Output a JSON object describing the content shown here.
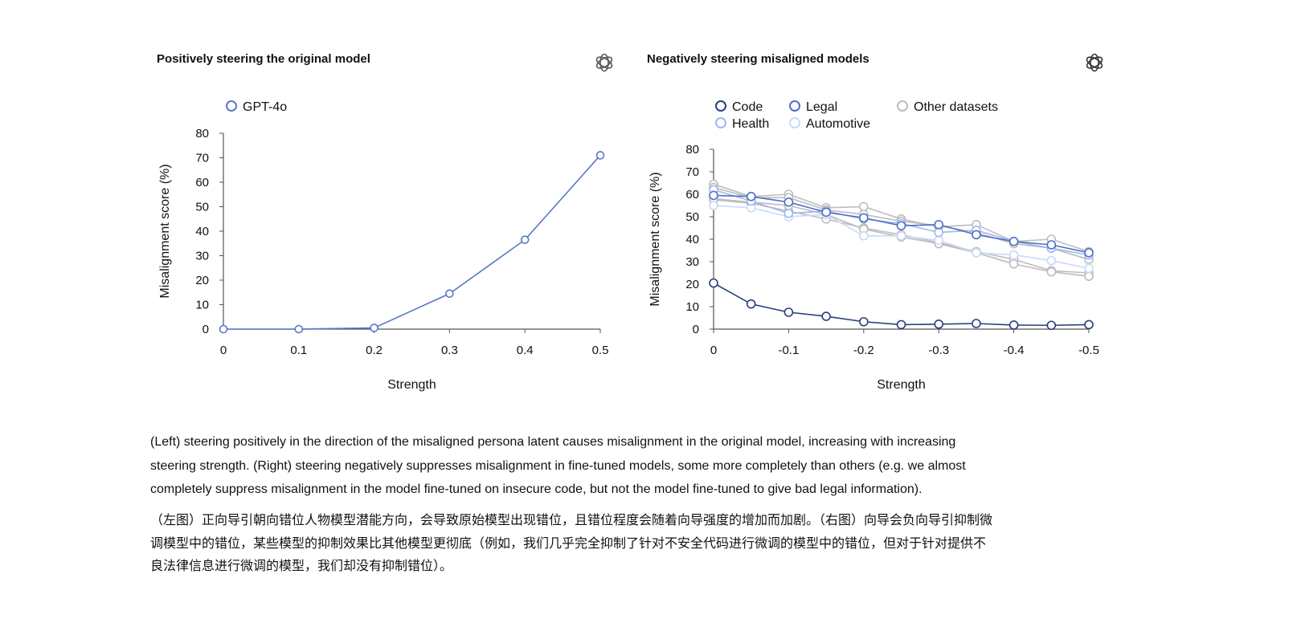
{
  "chart_data": [
    {
      "type": "line",
      "title": "Positively steering the original model",
      "xlabel": "Strength",
      "ylabel": "Misalignment score (%)",
      "ylim": [
        0,
        80
      ],
      "xlim": [
        0,
        0.5
      ],
      "yticks": [
        0,
        10,
        20,
        30,
        40,
        50,
        60,
        70,
        80
      ],
      "xticks": [
        "0",
        "0.1",
        "0.2",
        "0.3",
        "0.4",
        "0.5"
      ],
      "grid": false,
      "legend": "top-left",
      "x": [
        0,
        0.1,
        0.2,
        0.3,
        0.4,
        0.5
      ],
      "series": [
        {
          "name": "GPT-4o",
          "color": "#5a78c8",
          "values": [
            0,
            0,
            0.5,
            14.5,
            36.5,
            71
          ]
        }
      ]
    },
    {
      "type": "line",
      "title": "Negatively steering misaligned models",
      "xlabel": "Strength",
      "ylabel": "Misalignment score (%)",
      "ylim": [
        0,
        80
      ],
      "xlim": [
        0,
        -0.5
      ],
      "yticks": [
        0,
        10,
        20,
        30,
        40,
        50,
        60,
        70,
        80
      ],
      "xticks": [
        "0",
        "-0.1",
        "-0.2",
        "-0.3",
        "-0.4",
        "-0.5"
      ],
      "grid": false,
      "legend": "top",
      "x": [
        0,
        -0.05,
        -0.1,
        -0.15,
        -0.2,
        -0.25,
        -0.3,
        -0.35,
        -0.4,
        -0.45,
        -0.5
      ],
      "series": [
        {
          "name": "Other datasets",
          "color": "#bdbdbd",
          "values": [
            64.5,
            59,
            60,
            54,
            54.5,
            49,
            45.5,
            46.5,
            39,
            40,
            34.5
          ]
        },
        {
          "name": "",
          "color": "#bdbdbd",
          "values": [
            63,
            58.5,
            58.5,
            53,
            51,
            48,
            46,
            43,
            38,
            36,
            31
          ]
        },
        {
          "name": "",
          "color": "#bdbdbd",
          "values": [
            57.5,
            56,
            52.5,
            49,
            45,
            42,
            38.5,
            34.5,
            31,
            26,
            25
          ]
        },
        {
          "name": "",
          "color": "#bdbdbd",
          "values": [
            58,
            56.5,
            55,
            51,
            44.5,
            41,
            38,
            34,
            29,
            25.5,
            23.5
          ]
        },
        {
          "name": "Automotive",
          "color": "#c9daf8",
          "values": [
            55,
            54,
            50,
            51,
            41.5,
            41.5,
            39.5,
            34,
            33,
            30.5,
            27
          ]
        },
        {
          "name": "Health",
          "color": "#9fb8ee",
          "values": [
            62,
            57,
            51.5,
            52.5,
            49,
            47,
            43,
            44,
            39,
            36,
            33
          ]
        },
        {
          "name": "Legal",
          "color": "#4f6fc9",
          "values": [
            59.5,
            59,
            56.5,
            52,
            49.5,
            46,
            46.5,
            42,
            39,
            37.5,
            34
          ]
        },
        {
          "name": "Code",
          "color": "#2a3f7a",
          "values": [
            20.5,
            11.2,
            7.5,
            5.7,
            3.3,
            2,
            2.2,
            2.5,
            1.8,
            1.7,
            2
          ]
        }
      ],
      "legend_entries": [
        {
          "name": "Code",
          "color": "#2a3f7a"
        },
        {
          "name": "Legal",
          "color": "#4f6fc9"
        },
        {
          "name": "Other datasets",
          "color": "#bdbdbd"
        },
        {
          "name": "Health",
          "color": "#9fb8ee"
        },
        {
          "name": "Automotive",
          "color": "#c9daf8"
        }
      ]
    }
  ],
  "logo_icon": "openai-logo-icon",
  "caption_en": [
    "(Left) steering positively in the direction of the misaligned persona latent causes misalignment in the original model, increasing with increasing",
    "steering strength. (Right) steering negatively suppresses misalignment in fine-tuned models, some more completely than others (e.g. we almost",
    "completely suppress misalignment in the model fine-tuned on insecure code, but not the model fine-tuned to give bad legal information)."
  ],
  "caption_zh": [
    "（左图）正向导引朝向错位人物模型潜能方向，会导致原始模型出现错位，且错位程度会随着向导强度的增加而加剧。（右图）向导会负向导引抑制微",
    "调模型中的错位，某些模型的抑制效果比其他模型更彻底（例如，我们几乎完全抑制了针对不安全代码进行微调的模型中的错位，但对于针对提供不",
    "良法律信息进行微调的模型，我们却没有抑制错位）。"
  ]
}
